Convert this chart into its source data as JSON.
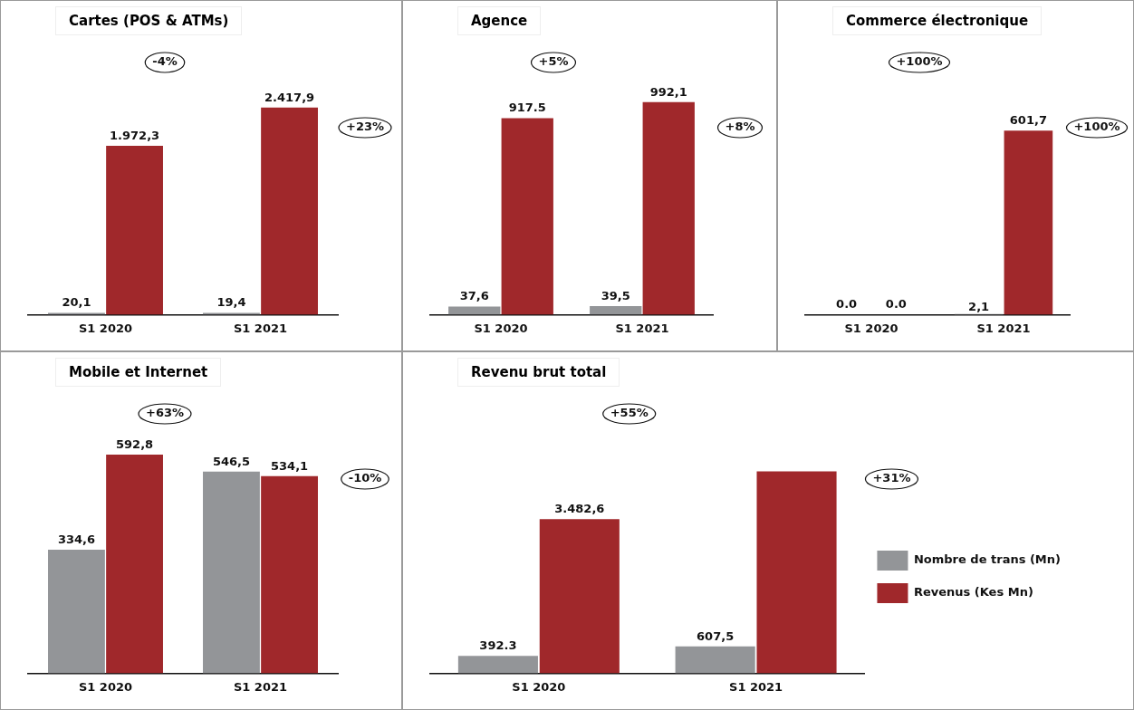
{
  "chart_data": [
    {
      "type": "bar",
      "title": "Cartes (POS & ATMs)",
      "categories": [
        "S1 2020",
        "S1 2021"
      ],
      "series": [
        {
          "color": "#939598",
          "values": [
            20.1,
            19.4
          ],
          "value_labels": [
            "20,1",
            "19,4"
          ]
        },
        {
          "color": "#a0282b",
          "values": [
            1972.3,
            2417.9
          ],
          "value_labels": [
            "1.972,3",
            "2.417,9"
          ]
        }
      ],
      "annotations": [
        "-4%",
        "+23%"
      ],
      "legend": false
    },
    {
      "type": "bar",
      "title": "Agence",
      "categories": [
        "S1 2020",
        "S1 2021"
      ],
      "series": [
        {
          "color": "#939598",
          "values": [
            37.6,
            39.5
          ],
          "value_labels": [
            "37,6",
            "39,5"
          ]
        },
        {
          "color": "#a0282b",
          "values": [
            917.5,
            992.1
          ],
          "value_labels": [
            "917.5",
            "992,1"
          ]
        }
      ],
      "annotations": [
        "+5%",
        "+8%"
      ],
      "legend": false
    },
    {
      "type": "bar",
      "title": "Commerce électronique",
      "categories": [
        "S1 2020",
        "S1 2021"
      ],
      "series": [
        {
          "color": "#939598",
          "values": [
            0,
            2.1
          ],
          "value_labels": [
            null,
            "2,1"
          ]
        },
        {
          "color": "#a0282b",
          "values": [
            0,
            601.7
          ],
          "value_labels": [
            null,
            "601,7"
          ]
        }
      ],
      "annotations": [
        "+100%",
        "+100%",
        {
          "text": "0.0",
          "x": "S1 2020",
          "y": 0
        },
        {
          "text": "0.0",
          "x": "S1 2020",
          "y": 0
        }
      ],
      "legend": false
    },
    {
      "type": "bar",
      "title": "Mobile et Internet",
      "categories": [
        "S1 2020",
        "S1 2021"
      ],
      "series": [
        {
          "color": "#939598",
          "values": [
            334.6,
            546.5
          ],
          "value_labels": [
            "334,6",
            "546,5"
          ]
        },
        {
          "color": "#a0282b",
          "values": [
            592.8,
            534.1
          ],
          "value_labels": [
            "592,8",
            "534,1"
          ]
        }
      ],
      "annotations": [
        "+63%",
        "-10%"
      ],
      "legend": false
    },
    {
      "type": "bar",
      "title": "Revenu brut total",
      "categories": [
        "S1 2020",
        "S1 2021"
      ],
      "series": [
        {
          "name": "Nombre de trans (Mn)",
          "color": "#939598",
          "values": [
            392.3,
            607.5
          ],
          "value_labels": [
            "392.3",
            "607,5"
          ]
        },
        {
          "name": "Revenus (Kes Mn)",
          "color": "#a0282b",
          "values": [
            3482.6,
            4562
          ],
          "value_labels": [
            "3.482,6",
            null
          ]
        }
      ],
      "annotations": [
        "+55%",
        "+31%"
      ],
      "legend": "right"
    }
  ]
}
